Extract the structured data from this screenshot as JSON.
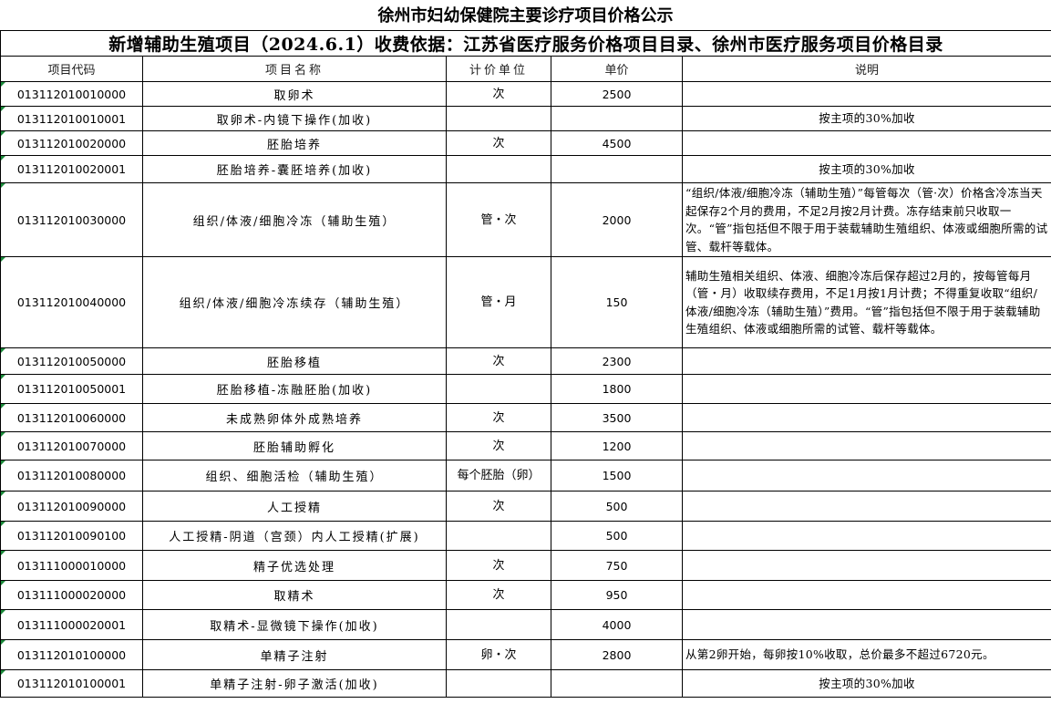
{
  "title": "徐州市妇幼保健院主要诊疗项目价格公示",
  "subtitle": "新增辅助生殖项目（2024.6.1）收费依据：江苏省医疗服务价格项目目录、徐州市医疗服务项目价格目录",
  "columns": [
    "项目代码",
    "项目名称",
    "计价单位",
    "单价",
    "说明"
  ],
  "rows": [
    {
      "code": "013112010010000",
      "name": "取卵术",
      "unit": "次",
      "price": "2500",
      "note": ""
    },
    {
      "code": "013112010010001",
      "name": "取卵术-内镜下操作(加收)",
      "unit": "",
      "price": "",
      "note": "按主项的30%加收"
    },
    {
      "code": "013112010020000",
      "name": "胚胎培养",
      "unit": "次",
      "price": "4500",
      "note": ""
    },
    {
      "code": "013112010020001",
      "name": "胚胎培养-囊胚培养(加收)",
      "unit": "",
      "price": "",
      "note": "按主项的30%加收"
    },
    {
      "code": "013112010030000",
      "name": "组织/体液/细胞冷冻（辅助生殖）",
      "unit": "管・次",
      "price": "2000",
      "note": "“组织/体液/细胞冷冻（辅助生殖）”每管每次（管·次）价格含冷冻当天起保存2个月的费用，不足2月按2月计费。冻存结束前只收取一次。“管”指包括但不限于用于装载辅助生殖组织、体液或细胞所需的试管、载杆等载体。"
    },
    {
      "code": "013112010040000",
      "name": "组织/体液/细胞冷冻续存（辅助生殖）",
      "unit": "管・月",
      "price": "150",
      "note": "辅助生殖相关组织、体液、细胞冷冻后保存超过2月的，按每管每月（管・月）收取续存费用，不足1月按1月计费；不得重复收取“组织/体液/细胞冷冻（辅助生殖）”费用。“管”指包括但不限于用于装载辅助生殖组织、体液或细胞所需的试管、载杆等载体。"
    },
    {
      "code": "013112010050000",
      "name": "胚胎移植",
      "unit": "次",
      "price": "2300",
      "note": ""
    },
    {
      "code": "013112010050001",
      "name": "胚胎移植-冻融胚胎(加收)",
      "unit": "",
      "price": "1800",
      "note": ""
    },
    {
      "code": "013112010060000",
      "name": "未成熟卵体外成熟培养",
      "unit": "次",
      "price": "3500",
      "note": ""
    },
    {
      "code": "013112010070000",
      "name": "胚胎辅助孵化",
      "unit": "次",
      "price": "1200",
      "note": ""
    },
    {
      "code": "013112010080000",
      "name": "组织、细胞活检（辅助生殖）",
      "unit": "每个胚胎（卵）",
      "price": "1500",
      "note": ""
    },
    {
      "code": "013112010090000",
      "name": "人工授精",
      "unit": "次",
      "price": "500",
      "note": ""
    },
    {
      "code": "013112010090100",
      "name": "人工授精-阴道（宫颈）内人工授精(扩展)",
      "unit": "",
      "price": "500",
      "note": ""
    },
    {
      "code": "013111000010000",
      "name": "精子优选处理",
      "unit": "次",
      "price": "750",
      "note": ""
    },
    {
      "code": "013111000020000",
      "name": "取精术",
      "unit": "次",
      "price": "950",
      "note": ""
    },
    {
      "code": "013111000020001",
      "name": "取精术-显微镜下操作(加收)",
      "unit": "",
      "price": "4000",
      "note": ""
    },
    {
      "code": "013112010100000",
      "name": "单精子注射",
      "unit": "卵・次",
      "price": "2800",
      "note": "从第2卵开始，每卵按10%收取，总价最多不超过6720元。"
    },
    {
      "code": "013112010100001",
      "name": "单精子注射-卵子激活(加收)",
      "unit": "",
      "price": "",
      "note": "按主项的30%加收"
    }
  ],
  "colors": {
    "text_marker": "#1a8a3a",
    "border": "#000000"
  }
}
